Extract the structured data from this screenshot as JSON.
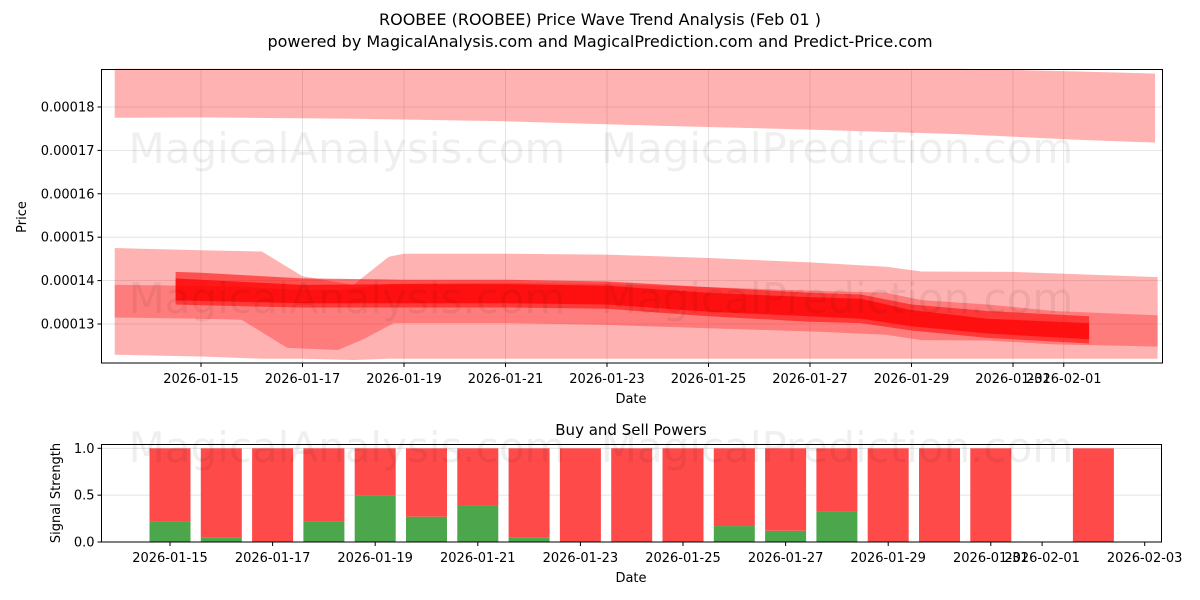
{
  "figure": {
    "title_line1": "ROOBEE (ROOBEE) Price Wave Trend Analysis (Feb 01 )",
    "title_line2": "powered by MagicalAnalysis.com and MagicalPrediction.com and Predict-Price.com",
    "watermarks": [
      "MagicalAnalysis.com",
      "MagicalPrediction.com"
    ]
  },
  "colors": {
    "band_light": "#ff0000",
    "buy": "#4ca64c",
    "sell": "#ff4a4a",
    "grid": "#dddddd"
  },
  "chart_data": [
    {
      "type": "area",
      "title": "",
      "xlabel": "Date",
      "ylabel": "Price",
      "grid": true,
      "x_tick_labels": [
        "2026-01-15",
        "2026-01-17",
        "2026-01-19",
        "2026-01-21",
        "2026-01-23",
        "2026-01-25",
        "2026-01-27",
        "2026-01-29",
        "2026-01-31",
        "2026-02-01"
      ],
      "y_tick_labels": [
        "0.00013",
        "0.00014",
        "0.00015",
        "0.00016",
        "0.00017",
        "0.00018"
      ],
      "y_ticks": [
        0.00013,
        0.00014,
        0.00015,
        0.00016,
        0.00017,
        0.00018
      ],
      "ylim": [
        0.000121,
        0.0001888
      ],
      "xlim_days_from_2026_01_15": [
        -1.96,
        19.0
      ],
      "series": [
        {
          "name": "upper-forecast-band",
          "opacity": 0.3,
          "x_days": [
            -1.7,
            0,
            3,
            6,
            9,
            12,
            15,
            17.2,
            18.8
          ],
          "upper": [
            0.0001888,
            0.0001888,
            0.0001888,
            0.0001888,
            0.0001888,
            0.0001888,
            0.0001888,
            0.0001882,
            0.0001877
          ],
          "lower": [
            0.0001775,
            0.0001776,
            0.0001773,
            0.0001767,
            0.0001757,
            0.0001748,
            0.0001737,
            0.0001725,
            0.0001718
          ]
        },
        {
          "name": "outer-wave-band",
          "opacity": 0.3,
          "x_days": [
            -1.7,
            0,
            1.2,
            2,
            3,
            3.7,
            4.0,
            6,
            8,
            10,
            12,
            13.5,
            14.2,
            16,
            18.85
          ],
          "upper": [
            0.0001475,
            0.000147,
            0.0001467,
            0.000141,
            0.000139,
            0.0001455,
            0.0001462,
            0.0001462,
            0.000146,
            0.0001452,
            0.0001442,
            0.0001432,
            0.0001421,
            0.000142,
            0.0001408
          ],
          "lower": [
            0.0001229,
            0.0001225,
            0.000122,
            0.000122,
            0.0001217,
            0.000122,
            0.000122,
            0.000122,
            0.000122,
            0.000122,
            0.000122,
            0.000122,
            0.000122,
            0.000122,
            0.000122
          ]
        },
        {
          "name": "mid-wave-band",
          "opacity": 0.3,
          "x_days": [
            -1.7,
            0,
            0.8,
            1.7,
            2.7,
            3.2,
            3.8,
            6,
            8,
            10,
            12,
            13.5,
            14.2,
            15.5,
            16.8,
            18.85
          ],
          "upper": [
            0.000139,
            0.0001388,
            0.0001386,
            0.000138,
            0.0001378,
            0.0001385,
            0.0001393,
            0.0001395,
            0.0001392,
            0.0001385,
            0.0001377,
            0.0001372,
            0.0001355,
            0.0001345,
            0.000133,
            0.000132
          ],
          "lower": [
            0.0001315,
            0.0001312,
            0.000131,
            0.0001245,
            0.000124,
            0.0001265,
            0.0001302,
            0.0001302,
            0.0001298,
            0.000129,
            0.0001283,
            0.0001275,
            0.0001263,
            0.0001262,
            0.0001253,
            0.0001248
          ]
        },
        {
          "name": "core-wave-band",
          "opacity": 0.55,
          "x_days": [
            -0.5,
            0,
            2,
            4,
            6,
            8,
            10,
            12,
            13,
            14,
            15.5,
            17.5
          ],
          "upper": [
            0.000142,
            0.0001418,
            0.0001405,
            0.0001402,
            0.0001402,
            0.0001398,
            0.0001385,
            0.0001372,
            0.0001368,
            0.0001345,
            0.000133,
            0.0001318
          ],
          "lower": [
            0.0001345,
            0.0001343,
            0.0001338,
            0.0001338,
            0.0001338,
            0.0001335,
            0.0001318,
            0.0001305,
            0.0001302,
            0.0001285,
            0.0001268,
            0.0001255
          ]
        },
        {
          "name": "center-wave-line",
          "opacity": 0.7,
          "x_days": [
            -0.5,
            0,
            2,
            4,
            6,
            8,
            10,
            12,
            13,
            14,
            15.5,
            17.5
          ],
          "upper": [
            0.0001405,
            0.0001402,
            0.000139,
            0.0001392,
            0.0001392,
            0.0001388,
            0.0001372,
            0.0001362,
            0.0001358,
            0.0001332,
            0.0001312,
            0.0001302
          ],
          "lower": [
            0.0001355,
            0.0001353,
            0.0001348,
            0.0001348,
            0.0001348,
            0.0001345,
            0.0001328,
            0.0001318,
            0.0001312,
            0.0001295,
            0.0001278,
            0.0001265
          ]
        }
      ]
    },
    {
      "type": "bar",
      "title": "Buy and Sell Powers",
      "xlabel": "Date",
      "ylabel": "Signal Strength",
      "grid": true,
      "ylim": [
        0,
        1.05
      ],
      "y_tick_labels": [
        "0.0",
        "0.5",
        "1.0"
      ],
      "y_ticks": [
        0,
        0.5,
        1.0
      ],
      "x_tick_labels": [
        "2026-01-15",
        "2026-01-17",
        "2026-01-19",
        "2026-01-21",
        "2026-01-23",
        "2026-01-25",
        "2026-01-27",
        "2026-01-29",
        "2026-01-31",
        "2026-02-01",
        "2026-02-03"
      ],
      "categories": [
        "2026-01-15",
        "2026-01-16",
        "2026-01-17",
        "2026-01-18",
        "2026-01-19",
        "2026-01-20",
        "2026-01-21",
        "2026-01-22",
        "2026-01-23",
        "2026-01-24",
        "2026-01-25",
        "2026-01-26",
        "2026-01-27",
        "2026-01-28",
        "2026-01-29",
        "2026-01-30",
        "2026-01-31",
        "2026-02-01",
        "2026-02-02"
      ],
      "series": [
        {
          "name": "Buy",
          "color": "#4ca64c",
          "values": [
            0.22,
            0.05,
            0.0,
            0.22,
            0.5,
            0.27,
            0.39,
            0.05,
            0.0,
            0.0,
            0.0,
            0.17,
            0.12,
            0.33,
            0.0,
            0.0,
            0.0,
            null,
            0.0
          ]
        },
        {
          "name": "Sell",
          "color": "#ff4a4a",
          "values": [
            0.78,
            0.95,
            1.0,
            0.78,
            0.5,
            0.73,
            0.61,
            0.95,
            1.0,
            1.0,
            1.0,
            0.83,
            0.88,
            0.67,
            1.0,
            1.0,
            1.0,
            null,
            1.0
          ]
        }
      ]
    }
  ]
}
